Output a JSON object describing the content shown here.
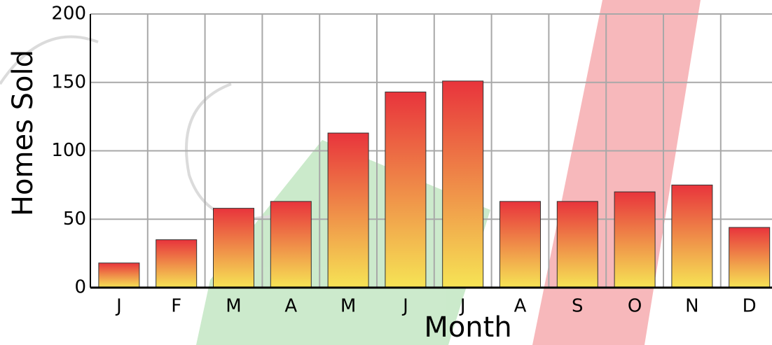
{
  "chart_data": {
    "type": "bar",
    "x_label": "Month",
    "y_label": "Homes Sold",
    "categories": [
      "J",
      "F",
      "M",
      "A",
      "M",
      "J",
      "J",
      "A",
      "S",
      "O",
      "N",
      "D"
    ],
    "values": [
      18,
      35,
      58,
      63,
      113,
      143,
      151,
      63,
      63,
      70,
      75,
      44
    ],
    "color": "#e8343c",
    "color_bottom": "#f6e455",
    "ylim": [
      0,
      200
    ],
    "yticks": [
      0,
      50,
      100,
      150,
      200
    ],
    "grid": true
  }
}
